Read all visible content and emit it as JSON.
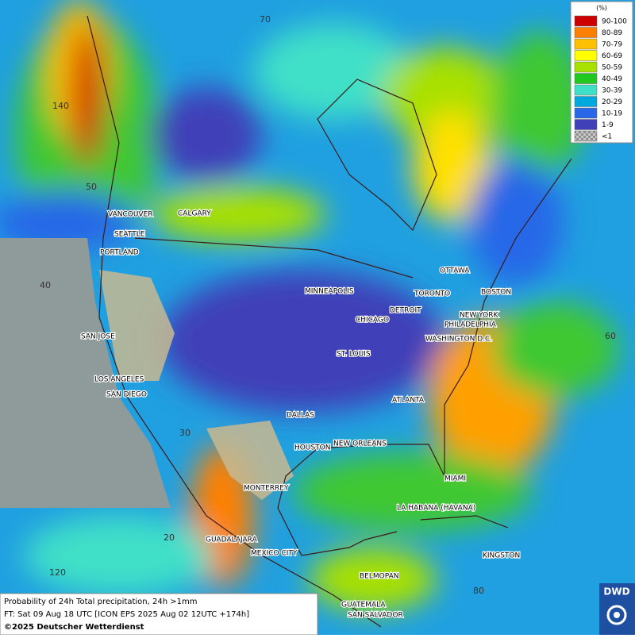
{
  "legend": {
    "unit": "(%)",
    "items": [
      {
        "label": "90-100",
        "color": "#cc0000"
      },
      {
        "label": "80-89",
        "color": "#ff8000"
      },
      {
        "label": "70-79",
        "color": "#ffc000"
      },
      {
        "label": "60-69",
        "color": "#ffff00"
      },
      {
        "label": "50-59",
        "color": "#a8e000"
      },
      {
        "label": "40-49",
        "color": "#20c820"
      },
      {
        "label": "30-39",
        "color": "#40e0c8"
      },
      {
        "label": "20-29",
        "color": "#00a8e0"
      },
      {
        "label": "10-19",
        "color": "#2868e8"
      },
      {
        "label": "1-9",
        "color": "#4040b8"
      },
      {
        "label": "<1",
        "color": "#b0b0b0"
      }
    ]
  },
  "cities": [
    "VANCOUVER",
    "CALGARY",
    "SEATTLE",
    "PORTLAND",
    "MINNEAPOLIS",
    "OTTAWA",
    "TORONTO",
    "BOSTON",
    "DETROIT",
    "NEW YORK",
    "CHICAGO",
    "PHILADELPHIA",
    "WASHINGTON D.C.",
    "SAN JOSE",
    "ST. LOUIS",
    "LOS ANGELES",
    "SAN DIEGO",
    "ATLANTA",
    "DALLAS",
    "NEW ORLEANS",
    "HOUSTON",
    "MIAMI",
    "MONTERREY",
    "LA HABANA (HAVANA)",
    "GUADALAJARA",
    "MEXICO CITY",
    "KINGSTON",
    "BELMOPAN",
    "GUATEMALA",
    "SAN SALVADOR"
  ],
  "graticule_labels": [
    "70",
    "140",
    "50",
    "40",
    "60",
    "30",
    "20",
    "120",
    "80"
  ],
  "footer": {
    "product": "Probability of 24h Total precipitation, 24h >1mm",
    "forecast": "FT: Sat 09 Aug 18 UTC [ICON EPS 2025 Aug 02 12UTC +174h]",
    "copyright": "©2025 Deutscher Wetterdienst"
  },
  "logo": "DWD"
}
